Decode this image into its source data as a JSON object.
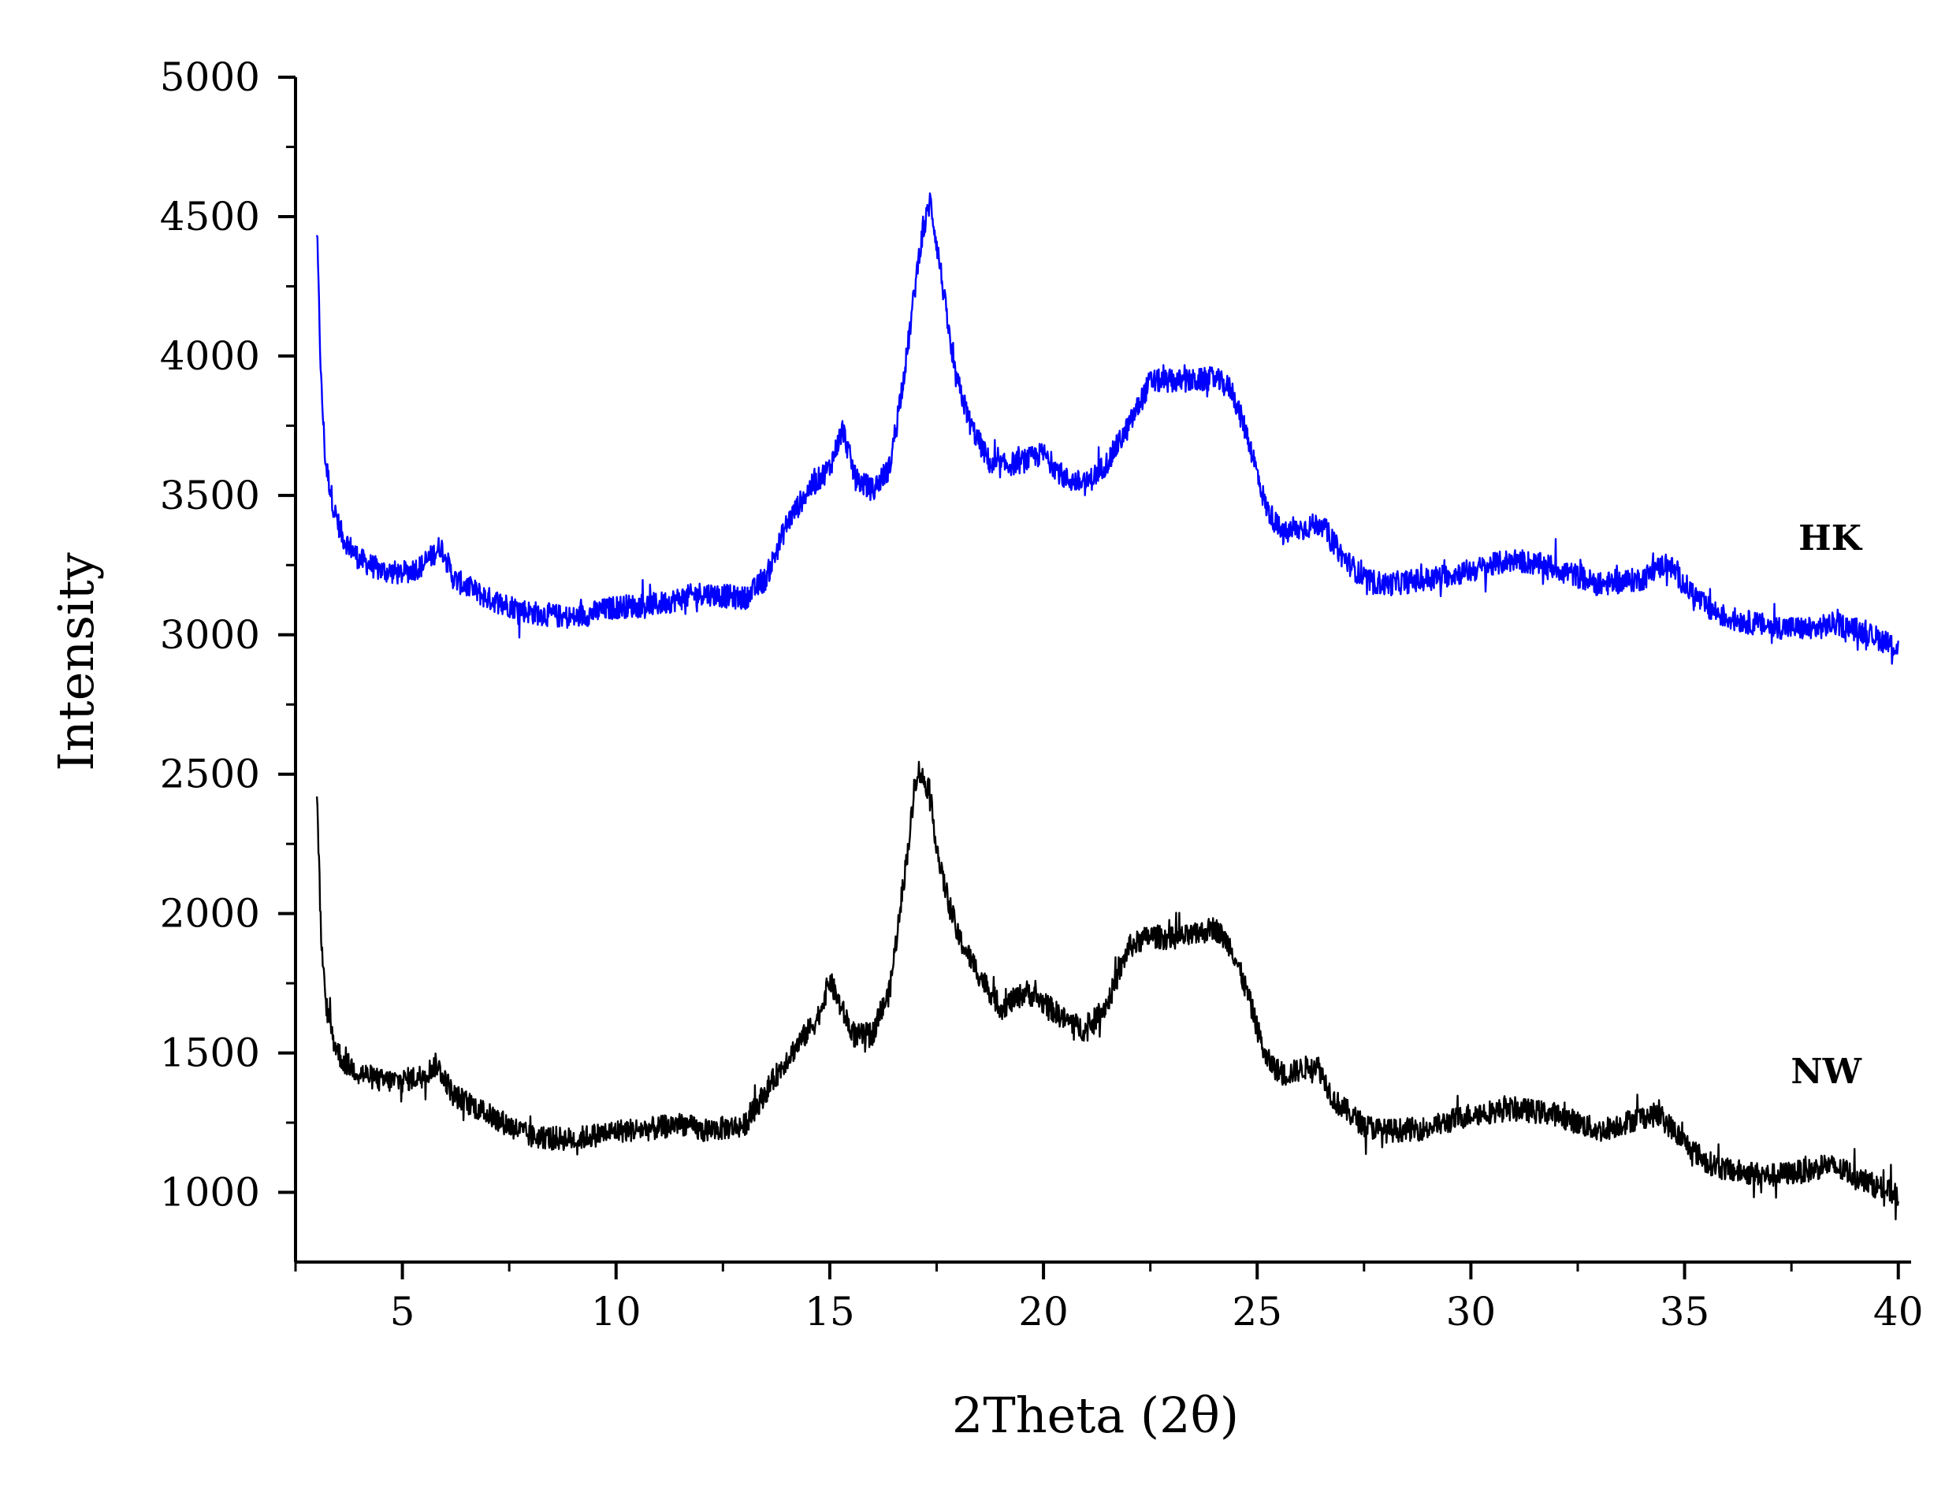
{
  "chart_data": {
    "type": "line",
    "title": "",
    "xlabel": "2Theta (2θ)",
    "ylabel": "Intensity",
    "xlim": [
      2.5,
      40.3
    ],
    "ylim": [
      750,
      5000
    ],
    "x_ticks": [
      5,
      10,
      15,
      20,
      25,
      30,
      35,
      40
    ],
    "x_tick_labels": [
      "5",
      "10",
      "15",
      "20",
      "25",
      "30",
      "35",
      "40"
    ],
    "y_ticks": [
      1000,
      1500,
      2000,
      2500,
      3000,
      3500,
      4000,
      4500,
      5000
    ],
    "y_tick_labels": [
      "1000",
      "1500",
      "2000",
      "2500",
      "3000",
      "3500",
      "4000",
      "4500",
      "5000"
    ],
    "grid": false,
    "legend": "none",
    "series": [
      {
        "name": "HK",
        "color": "#0000ff",
        "noise": 85,
        "x": [
          3.0,
          3.1,
          3.2,
          3.4,
          3.6,
          4.0,
          4.5,
          5.0,
          5.5,
          5.9,
          6.2,
          7.0,
          8.0,
          9.0,
          10.0,
          11.0,
          12.0,
          13.0,
          13.5,
          14.0,
          14.5,
          15.0,
          15.3,
          15.6,
          16.0,
          16.4,
          16.8,
          17.1,
          17.35,
          17.6,
          17.9,
          18.3,
          18.8,
          19.5,
          20.0,
          20.5,
          21.0,
          21.5,
          22.0,
          22.5,
          23.0,
          23.5,
          24.0,
          24.4,
          24.8,
          25.2,
          25.6,
          26.0,
          26.5,
          27.0,
          27.5,
          28.0,
          29.0,
          30.0,
          31.0,
          32.0,
          33.0,
          34.0,
          34.6,
          35.0,
          35.5,
          36.0,
          37.0,
          38.0,
          38.5,
          39.0,
          39.5,
          40.0
        ],
        "y": [
          4450,
          3900,
          3620,
          3450,
          3350,
          3270,
          3230,
          3220,
          3250,
          3320,
          3200,
          3130,
          3080,
          3060,
          3100,
          3110,
          3150,
          3130,
          3200,
          3400,
          3520,
          3600,
          3740,
          3560,
          3520,
          3600,
          4000,
          4380,
          4560,
          4300,
          3950,
          3750,
          3600,
          3620,
          3650,
          3560,
          3540,
          3620,
          3750,
          3910,
          3910,
          3910,
          3920,
          3880,
          3700,
          3460,
          3360,
          3380,
          3400,
          3280,
          3200,
          3180,
          3200,
          3230,
          3270,
          3240,
          3180,
          3200,
          3260,
          3180,
          3100,
          3060,
          3030,
          3020,
          3040,
          3020,
          2990,
          2950
        ]
      },
      {
        "name": "NW",
        "color": "#000000",
        "noise": 85,
        "x": [
          3.0,
          3.1,
          3.2,
          3.4,
          3.6,
          4.0,
          4.5,
          5.0,
          5.5,
          5.8,
          6.2,
          7.0,
          8.0,
          9.0,
          10.0,
          11.0,
          11.5,
          12.0,
          13.0,
          13.5,
          14.0,
          14.5,
          14.7,
          15.0,
          15.3,
          15.6,
          16.0,
          16.4,
          16.8,
          17.05,
          17.3,
          17.6,
          18.0,
          18.5,
          19.0,
          19.6,
          20.0,
          20.5,
          21.0,
          21.5,
          22.0,
          22.5,
          23.0,
          23.5,
          24.0,
          24.4,
          24.8,
          25.2,
          25.6,
          26.0,
          26.4,
          26.8,
          27.5,
          28.0,
          29.0,
          30.0,
          31.0,
          32.0,
          33.0,
          34.0,
          34.4,
          35.0,
          35.5,
          36.0,
          37.0,
          38.0,
          38.3,
          39.0,
          39.5,
          40.0
        ],
        "y": [
          2450,
          1900,
          1680,
          1540,
          1470,
          1430,
          1400,
          1400,
          1420,
          1460,
          1350,
          1280,
          1200,
          1190,
          1220,
          1230,
          1250,
          1220,
          1240,
          1360,
          1480,
          1580,
          1620,
          1760,
          1650,
          1560,
          1570,
          1720,
          2200,
          2520,
          2450,
          2150,
          1920,
          1780,
          1660,
          1720,
          1680,
          1620,
          1580,
          1680,
          1880,
          1920,
          1910,
          1920,
          1950,
          1880,
          1700,
          1480,
          1420,
          1440,
          1460,
          1330,
          1240,
          1220,
          1230,
          1280,
          1300,
          1280,
          1220,
          1270,
          1280,
          1180,
          1110,
          1080,
          1060,
          1080,
          1100,
          1060,
          1020,
          990
        ]
      }
    ]
  }
}
